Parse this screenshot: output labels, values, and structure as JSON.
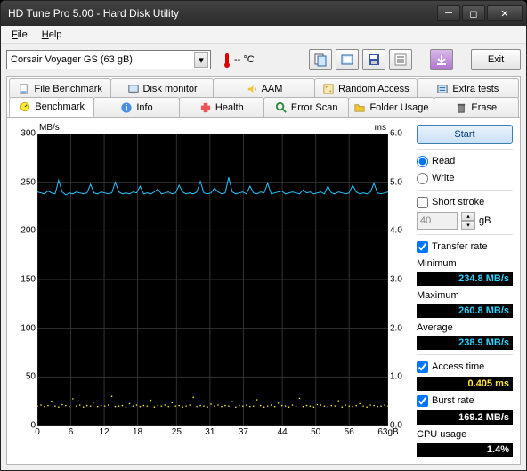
{
  "window": {
    "title": "HD Tune Pro 5.00 - Hard Disk Utility"
  },
  "menu": {
    "file": "File",
    "help": "Help"
  },
  "toolbar": {
    "drive": "Corsair Voyager GS       (63 gB)",
    "temp": "-- °C",
    "exit": "Exit"
  },
  "tabsTop": [
    {
      "label": "File Benchmark",
      "icon": "file"
    },
    {
      "label": "Disk monitor",
      "icon": "monitor"
    },
    {
      "label": "AAM",
      "icon": "speaker"
    },
    {
      "label": "Random Access",
      "icon": "random"
    },
    {
      "label": "Extra tests",
      "icon": "extra"
    }
  ],
  "tabsBottom": [
    {
      "label": "Benchmark",
      "icon": "bench",
      "active": true
    },
    {
      "label": "Info",
      "icon": "info"
    },
    {
      "label": "Health",
      "icon": "health"
    },
    {
      "label": "Error Scan",
      "icon": "scan"
    },
    {
      "label": "Folder Usage",
      "icon": "folder"
    },
    {
      "label": "Erase",
      "icon": "erase"
    }
  ],
  "chart": {
    "ylabel_left": "MB/s",
    "ylabel_right": "ms",
    "xlabel_suffix": "gB",
    "yticks_left": [
      0,
      50,
      100,
      150,
      200,
      250,
      300
    ],
    "yticks_right": [
      "0.0",
      "1.0",
      "2.0",
      "3.0",
      "4.0",
      "5.0",
      "6.0"
    ],
    "xticks": [
      0,
      6,
      12,
      18,
      25,
      31,
      37,
      44,
      50,
      56,
      63
    ],
    "ylim_left": [
      0,
      300
    ],
    "ylim_right": [
      0,
      6.0
    ],
    "xlim": [
      0,
      63
    ],
    "grid_color": "#333333",
    "bg": "#000000",
    "transfer_color": "#29c6ff",
    "transfer_base": 238,
    "transfer_noise": [
      240,
      239,
      238,
      241,
      239,
      238,
      252,
      240,
      237,
      239,
      238,
      240,
      239,
      238,
      239,
      248,
      239,
      238,
      240,
      239,
      238,
      239,
      250,
      240,
      238,
      239,
      238,
      240,
      239,
      246,
      238,
      239,
      238,
      240,
      243,
      238,
      239,
      240,
      238,
      239,
      247,
      240,
      238,
      239,
      238,
      240,
      251,
      239,
      238,
      239,
      244,
      240,
      238,
      239,
      255,
      240,
      238,
      239,
      240,
      238,
      246,
      239,
      238,
      240,
      239,
      249,
      238,
      239,
      240,
      241,
      238,
      239,
      240,
      239,
      238,
      242,
      239,
      240,
      238,
      239,
      240,
      238,
      246,
      239,
      238,
      240,
      239,
      238,
      239,
      247,
      240,
      238,
      239,
      238,
      240,
      249,
      239,
      238,
      239,
      240
    ],
    "access_color": "#ffe838",
    "access_base": 0.4,
    "access_noise": [
      0.4,
      0.42,
      0.39,
      0.41,
      0.5,
      0.4,
      0.38,
      0.43,
      0.41,
      0.39,
      0.55,
      0.4,
      0.42,
      0.38,
      0.41,
      0.4,
      0.48,
      0.39,
      0.41,
      0.4,
      0.42,
      0.6,
      0.39,
      0.4,
      0.41,
      0.38,
      0.45,
      0.4,
      0.42,
      0.39,
      0.41,
      0.4,
      0.52,
      0.38,
      0.41,
      0.4,
      0.42,
      0.39,
      0.47,
      0.4,
      0.41,
      0.38,
      0.4,
      0.42,
      0.58,
      0.39,
      0.41,
      0.4,
      0.38,
      0.44,
      0.4,
      0.42,
      0.39,
      0.41,
      0.4,
      0.49,
      0.38,
      0.41,
      0.4,
      0.42,
      0.39,
      0.4,
      0.53,
      0.41,
      0.38,
      0.4,
      0.42,
      0.39,
      0.46,
      0.41,
      0.4,
      0.38,
      0.42,
      0.4,
      0.56,
      0.39,
      0.41,
      0.4,
      0.38,
      0.43,
      0.42,
      0.4,
      0.39,
      0.41,
      0.4,
      0.51,
      0.38,
      0.42,
      0.4,
      0.39,
      0.41,
      0.45,
      0.4,
      0.38,
      0.42,
      0.41,
      0.39,
      0.4,
      0.42,
      0.4
    ]
  },
  "side": {
    "start": "Start",
    "read": "Read",
    "write": "Write",
    "short_stroke": "Short stroke",
    "stroke_val": "40",
    "stroke_unit": "gB",
    "transfer_rate": "Transfer rate",
    "min_label": "Minimum",
    "min_val": "234.8 MB/s",
    "max_label": "Maximum",
    "max_val": "260.8 MB/s",
    "avg_label": "Average",
    "avg_val": "238.9 MB/s",
    "access_label": "Access time",
    "access_val": "0.405 ms",
    "burst_label": "Burst rate",
    "burst_val": "169.2 MB/s",
    "cpu_label": "CPU usage",
    "cpu_val": "1.4%"
  }
}
